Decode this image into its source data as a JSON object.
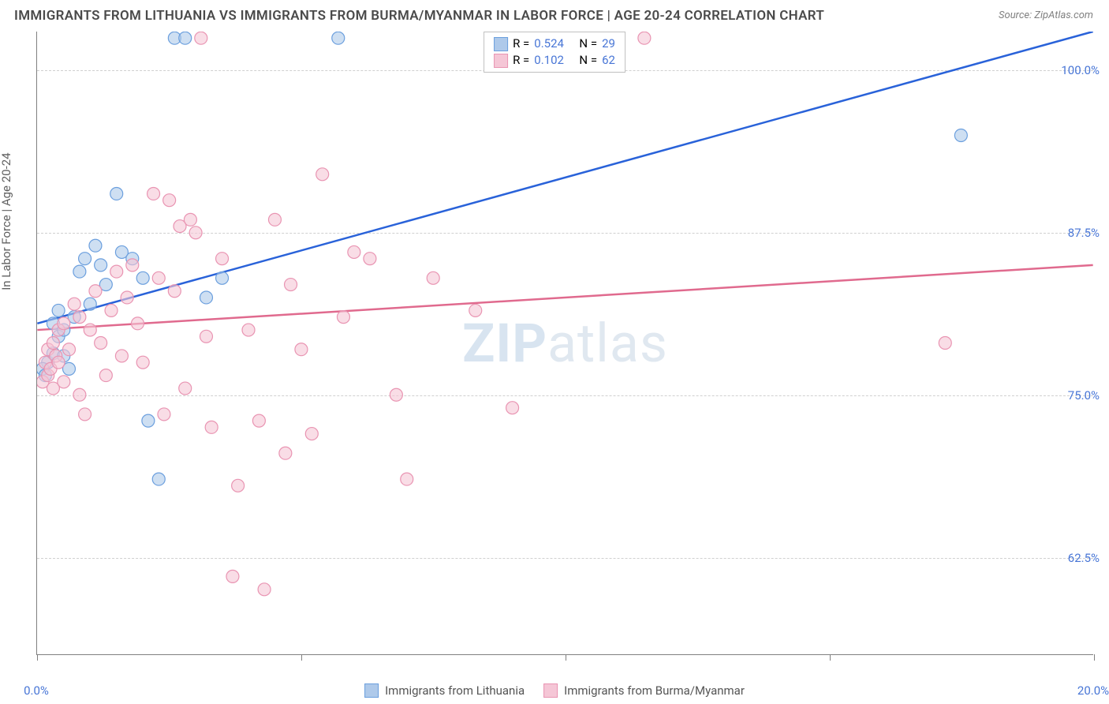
{
  "title": "IMMIGRANTS FROM LITHUANIA VS IMMIGRANTS FROM BURMA/MYANMAR IN LABOR FORCE | AGE 20-24 CORRELATION CHART",
  "source": "Source: ZipAtlas.com",
  "y_axis_label": "In Labor Force | Age 20-24",
  "watermark_bold": "ZIP",
  "watermark_light": "atlas",
  "chart": {
    "type": "scatter",
    "background_color": "#ffffff",
    "grid_color": "#d0d0d0",
    "axis_color": "#808080",
    "xlim": [
      0,
      20
    ],
    "ylim": [
      55,
      103
    ],
    "x_ticks": [
      0,
      5,
      10,
      15,
      20
    ],
    "x_tick_labels": [
      "0.0%",
      "",
      "",
      "",
      "20.0%"
    ],
    "y_gridlines": [
      62.5,
      75.0,
      87.5,
      100.0
    ],
    "y_tick_labels": [
      "62.5%",
      "75.0%",
      "87.5%",
      "100.0%"
    ],
    "tick_label_color": "#4876d6",
    "tick_label_fontsize": 15,
    "series": [
      {
        "name": "Immigrants from Lithuania",
        "color_fill": "#aec9ea",
        "color_stroke": "#6b9fde",
        "line_color": "#2962d9",
        "line_width": 2.5,
        "marker_radius": 8,
        "marker_opacity": 0.6,
        "R": "0.524",
        "N": "29",
        "trend_start": {
          "x": 0,
          "y": 80.5
        },
        "trend_end": {
          "x": 20,
          "y": 103
        },
        "points": [
          {
            "x": 0.2,
            "y": 77.5
          },
          {
            "x": 0.3,
            "y": 78.2
          },
          {
            "x": 0.3,
            "y": 80.5
          },
          {
            "x": 0.4,
            "y": 79.5
          },
          {
            "x": 0.4,
            "y": 81.5
          },
          {
            "x": 0.5,
            "y": 78.0
          },
          {
            "x": 0.5,
            "y": 80.0
          },
          {
            "x": 0.6,
            "y": 77.0
          },
          {
            "x": 0.7,
            "y": 81.0
          },
          {
            "x": 0.8,
            "y": 84.5
          },
          {
            "x": 0.9,
            "y": 85.5
          },
          {
            "x": 1.0,
            "y": 82.0
          },
          {
            "x": 1.1,
            "y": 86.5
          },
          {
            "x": 1.2,
            "y": 85.0
          },
          {
            "x": 1.3,
            "y": 83.5
          },
          {
            "x": 1.5,
            "y": 90.5
          },
          {
            "x": 1.6,
            "y": 86.0
          },
          {
            "x": 1.8,
            "y": 85.5
          },
          {
            "x": 2.0,
            "y": 84.0
          },
          {
            "x": 2.1,
            "y": 73.0
          },
          {
            "x": 2.3,
            "y": 68.5
          },
          {
            "x": 2.6,
            "y": 102.5
          },
          {
            "x": 2.8,
            "y": 102.5
          },
          {
            "x": 3.2,
            "y": 82.5
          },
          {
            "x": 3.5,
            "y": 84.0
          },
          {
            "x": 5.7,
            "y": 102.5
          },
          {
            "x": 0.1,
            "y": 77.0
          },
          {
            "x": 0.15,
            "y": 76.5
          },
          {
            "x": 17.5,
            "y": 95.0
          }
        ]
      },
      {
        "name": "Immigrants from Burma/Myanmar",
        "color_fill": "#f5c6d6",
        "color_stroke": "#e994b2",
        "line_color": "#e06a8e",
        "line_width": 2.5,
        "marker_radius": 8,
        "marker_opacity": 0.6,
        "R": "0.102",
        "N": "62",
        "trend_start": {
          "x": 0,
          "y": 80.0
        },
        "trend_end": {
          "x": 20,
          "y": 85.0
        },
        "points": [
          {
            "x": 0.1,
            "y": 76.0
          },
          {
            "x": 0.15,
            "y": 77.5
          },
          {
            "x": 0.2,
            "y": 78.5
          },
          {
            "x": 0.2,
            "y": 76.5
          },
          {
            "x": 0.25,
            "y": 77.0
          },
          {
            "x": 0.3,
            "y": 79.0
          },
          {
            "x": 0.3,
            "y": 75.5
          },
          {
            "x": 0.35,
            "y": 78.0
          },
          {
            "x": 0.4,
            "y": 77.5
          },
          {
            "x": 0.4,
            "y": 80.0
          },
          {
            "x": 0.5,
            "y": 76.0
          },
          {
            "x": 0.5,
            "y": 80.5
          },
          {
            "x": 0.6,
            "y": 78.5
          },
          {
            "x": 0.7,
            "y": 82.0
          },
          {
            "x": 0.8,
            "y": 75.0
          },
          {
            "x": 0.8,
            "y": 81.0
          },
          {
            "x": 0.9,
            "y": 73.5
          },
          {
            "x": 1.0,
            "y": 80.0
          },
          {
            "x": 1.1,
            "y": 83.0
          },
          {
            "x": 1.2,
            "y": 79.0
          },
          {
            "x": 1.3,
            "y": 76.5
          },
          {
            "x": 1.4,
            "y": 81.5
          },
          {
            "x": 1.5,
            "y": 84.5
          },
          {
            "x": 1.6,
            "y": 78.0
          },
          {
            "x": 1.7,
            "y": 82.5
          },
          {
            "x": 1.8,
            "y": 85.0
          },
          {
            "x": 1.9,
            "y": 80.5
          },
          {
            "x": 2.0,
            "y": 77.5
          },
          {
            "x": 2.2,
            "y": 90.5
          },
          {
            "x": 2.3,
            "y": 84.0
          },
          {
            "x": 2.4,
            "y": 73.5
          },
          {
            "x": 2.5,
            "y": 90.0
          },
          {
            "x": 2.6,
            "y": 83.0
          },
          {
            "x": 2.7,
            "y": 88.0
          },
          {
            "x": 2.8,
            "y": 75.5
          },
          {
            "x": 3.0,
            "y": 87.5
          },
          {
            "x": 3.1,
            "y": 102.5
          },
          {
            "x": 3.2,
            "y": 79.5
          },
          {
            "x": 3.3,
            "y": 72.5
          },
          {
            "x": 3.5,
            "y": 85.5
          },
          {
            "x": 3.7,
            "y": 61.0
          },
          {
            "x": 3.8,
            "y": 68.0
          },
          {
            "x": 4.0,
            "y": 80.0
          },
          {
            "x": 4.2,
            "y": 73.0
          },
          {
            "x": 4.3,
            "y": 60.0
          },
          {
            "x": 4.5,
            "y": 88.5
          },
          {
            "x": 4.7,
            "y": 70.5
          },
          {
            "x": 4.8,
            "y": 83.5
          },
          {
            "x": 5.0,
            "y": 78.5
          },
          {
            "x": 5.2,
            "y": 72.0
          },
          {
            "x": 5.4,
            "y": 92.0
          },
          {
            "x": 5.8,
            "y": 81.0
          },
          {
            "x": 6.0,
            "y": 86.0
          },
          {
            "x": 6.3,
            "y": 85.5
          },
          {
            "x": 6.8,
            "y": 75.0
          },
          {
            "x": 7.0,
            "y": 68.5
          },
          {
            "x": 7.5,
            "y": 84.0
          },
          {
            "x": 8.3,
            "y": 81.5
          },
          {
            "x": 9.0,
            "y": 74.0
          },
          {
            "x": 11.5,
            "y": 102.5
          },
          {
            "x": 17.2,
            "y": 79.0
          },
          {
            "x": 2.9,
            "y": 88.5
          }
        ]
      }
    ]
  },
  "legend_top": {
    "r_label": "R =",
    "n_label": "N ="
  },
  "legend_bottom": [
    {
      "label": "Immigrants from Lithuania"
    },
    {
      "label": "Immigrants from Burma/Myanmar"
    }
  ]
}
